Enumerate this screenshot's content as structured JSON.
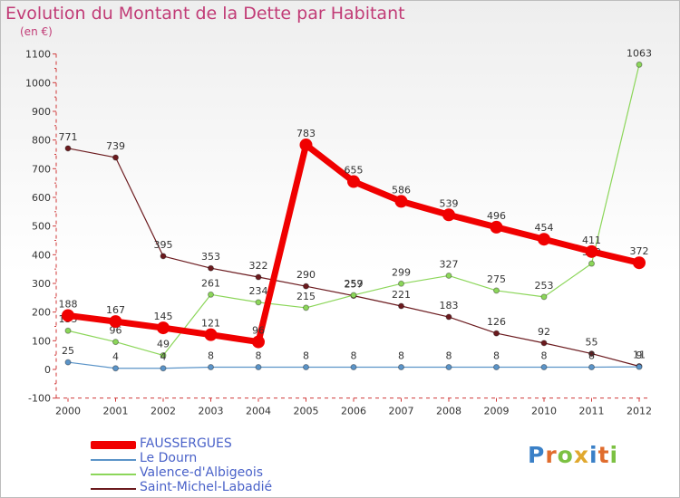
{
  "title": "Evolution du Montant de la Dette par Habitant",
  "subtitle": "(en €)",
  "logo": {
    "letters": [
      "P",
      "r",
      "o",
      "x",
      "i",
      "t",
      "i"
    ],
    "colors": [
      "#3a80c7",
      "#e06c2d",
      "#7cc142",
      "#e0a82e",
      "#3a80c7",
      "#e06c2d",
      "#7cc142"
    ]
  },
  "chart_data": {
    "type": "line",
    "x": [
      "2000",
      "2001",
      "2002",
      "2003",
      "2004",
      "2005",
      "2006",
      "2007",
      "2008",
      "2009",
      "2010",
      "2011",
      "2012"
    ],
    "ylim": [
      -100,
      1100
    ],
    "yticks": [
      -100,
      0,
      100,
      200,
      300,
      400,
      500,
      600,
      700,
      800,
      900,
      1000,
      1100
    ],
    "grid": false,
    "legend_position": "bottom-left",
    "series": [
      {
        "name": "Saint-Michel-Labadié",
        "color": "#6b1a1e",
        "values": [
          771,
          739,
          395,
          353,
          322,
          290,
          257,
          221,
          183,
          126,
          92,
          55,
          11
        ]
      },
      {
        "name": "Valence-d'Albigeois",
        "color": "#8cd65a",
        "values": [
          135,
          96,
          49,
          261,
          234,
          215,
          259,
          299,
          327,
          275,
          253,
          369,
          1063
        ]
      },
      {
        "name": "Le Dourn",
        "color": "#5b94c8",
        "values": [
          25,
          4,
          4,
          8,
          8,
          8,
          8,
          8,
          8,
          8,
          8,
          8,
          9
        ]
      },
      {
        "name": "FAUSSERGUES",
        "color": "#f00000",
        "values": [
          188,
          167,
          145,
          121,
          96,
          783,
          655,
          586,
          539,
          496,
          454,
          411,
          372
        ]
      }
    ],
    "data_labels": [
      [
        "771",
        "739",
        "395",
        "353",
        "322",
        "290",
        "257",
        "221",
        "183",
        "126",
        "92",
        "55",
        "11"
      ],
      [
        "135",
        "96",
        "49",
        "261",
        "234",
        "215",
        "259",
        "299",
        "327",
        "275",
        "253",
        "369",
        "1063"
      ],
      [
        "25",
        "4",
        "4",
        "8",
        "8",
        "8",
        "8",
        "8",
        "8",
        "8",
        "8",
        "8",
        "9"
      ],
      [
        "188",
        "167",
        "145",
        "121",
        "96",
        "783",
        "655",
        "586",
        "539",
        "496",
        "454",
        "411",
        "372"
      ]
    ]
  },
  "legend": [
    {
      "label": "FAUSSERGUES",
      "color": "#f00000"
    },
    {
      "label": "Le Dourn",
      "color": "#5b94c8"
    },
    {
      "label": "Valence-d'Albigeois",
      "color": "#8cd65a"
    },
    {
      "label": "Saint-Michel-Labadié",
      "color": "#6b1a1e"
    }
  ]
}
